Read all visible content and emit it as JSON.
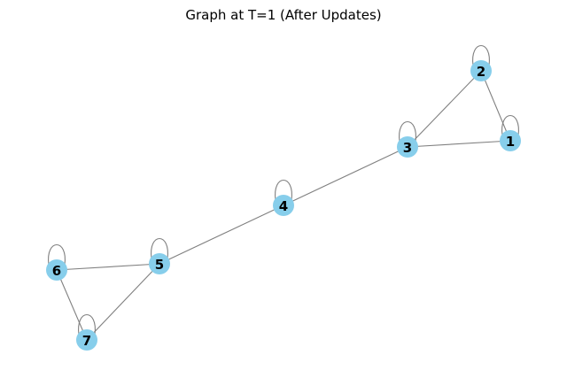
{
  "title": "Graph at T=1 (After Updates)",
  "colors": {
    "node": "#87ceeb",
    "edge": "#808080",
    "label": "#000000"
  },
  "nodes": [
    {
      "id": "1",
      "label": "1"
    },
    {
      "id": "2",
      "label": "2"
    },
    {
      "id": "3",
      "label": "3"
    },
    {
      "id": "4",
      "label": "4"
    },
    {
      "id": "5",
      "label": "5"
    },
    {
      "id": "6",
      "label": "6"
    },
    {
      "id": "7",
      "label": "7"
    }
  ],
  "edges": [
    [
      "1",
      "2"
    ],
    [
      "2",
      "3"
    ],
    [
      "3",
      "1"
    ],
    [
      "3",
      "4"
    ],
    [
      "4",
      "5"
    ],
    [
      "5",
      "6"
    ],
    [
      "6",
      "7"
    ],
    [
      "7",
      "5"
    ],
    [
      "1",
      "1"
    ],
    [
      "2",
      "2"
    ],
    [
      "3",
      "3"
    ],
    [
      "4",
      "4"
    ],
    [
      "5",
      "5"
    ],
    [
      "6",
      "6"
    ],
    [
      "7",
      "7"
    ]
  ]
}
